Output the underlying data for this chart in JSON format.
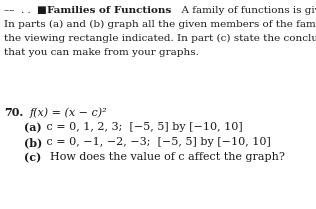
{
  "figsize": [
    3.16,
    2.09
  ],
  "dpi": 100,
  "background_color": "#ffffff",
  "text_color": "#1a1a1a",
  "header_prefix": "––  . .  ■",
  "header_bold": "Families of Functions",
  "header_rest": "  A family of functions is given.",
  "line2": "In parts (a) and (b) graph all the given members of the family in",
  "line3": "the viewing rectangle indicated. In part (c) state the conclusions",
  "line4": "that you can make from your graphs.",
  "prob_num": "70.",
  "func_expr": "f(x) = (x − c)²",
  "part_a_bold": "(a)",
  "part_a_rest": " c = 0, 1, 2, 3;  [−5, 5] by [−10, 10]",
  "part_b_bold": "(b)",
  "part_b_rest": " c = 0, −1, −2, −3;  [−5, 5] by [−10, 10]",
  "part_c_bold": "(c)",
  "part_c_rest": "  How does the value of c affect the graph?",
  "fontsize_header": 7.5,
  "fontsize_body": 7.5,
  "fontsize_problem": 8.0
}
